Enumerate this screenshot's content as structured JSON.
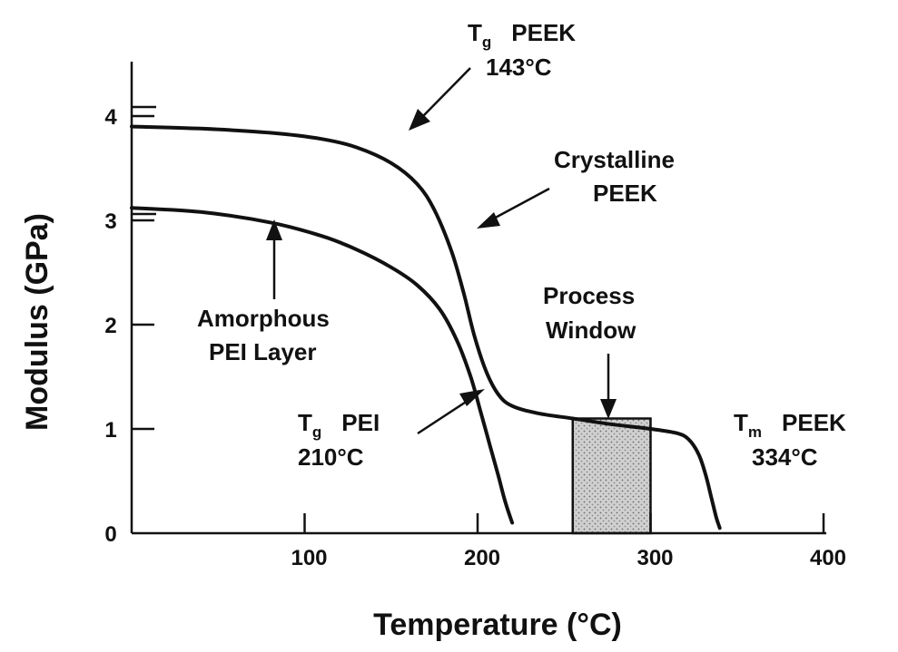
{
  "chart_data": {
    "type": "line",
    "title": "",
    "xlabel": "Temperature  (°C)",
    "ylabel": "Modulus  (GPa)",
    "xlim": [
      0,
      400
    ],
    "ylim": [
      0,
      4.4
    ],
    "x_ticks": [
      100,
      200,
      300,
      400
    ],
    "x_tick_labels": [
      "100",
      "200",
      "300",
      "400"
    ],
    "y_ticks": [
      0,
      1,
      2,
      3,
      4
    ],
    "y_tick_labels": [
      "0",
      "1",
      "2",
      "3",
      "4"
    ],
    "grid": false,
    "series": [
      {
        "x": [
          0,
          40,
          80,
          110,
          130,
          150,
          165,
          175,
          185,
          192,
          198,
          205,
          212,
          220,
          235,
          255,
          275,
          300,
          315,
          322,
          328,
          332,
          335,
          338,
          340
        ],
        "y": [
          3.9,
          3.88,
          3.84,
          3.78,
          3.7,
          3.55,
          3.35,
          3.1,
          2.7,
          2.3,
          1.9,
          1.55,
          1.33,
          1.22,
          1.15,
          1.1,
          1.05,
          1.0,
          0.96,
          0.9,
          0.75,
          0.55,
          0.35,
          0.15,
          0.05
        ]
      },
      {
        "x": [
          0,
          40,
          80,
          110,
          130,
          150,
          165,
          178,
          188,
          196,
          202,
          207,
          212,
          216,
          220
        ],
        "y": [
          3.12,
          3.08,
          2.98,
          2.85,
          2.72,
          2.55,
          2.38,
          2.15,
          1.85,
          1.5,
          1.15,
          0.85,
          0.55,
          0.3,
          0.1
        ]
      }
    ],
    "shaded_region": {
      "x_start": 255,
      "x_end": 300
    },
    "annotations": [
      {
        "id": "tg-peek",
        "text": [
          "T",
          "PEEK",
          "143°C"
        ],
        "subscript": "g",
        "target": [
          158,
          3.65
        ]
      },
      {
        "id": "crystalline",
        "text": [
          "Crystalline",
          "PEEK"
        ],
        "target": [
          200,
          2.9
        ]
      },
      {
        "id": "amorphous",
        "text": [
          "Amorphous",
          "PEI Layer"
        ],
        "target": [
          80,
          2.98
        ]
      },
      {
        "id": "tg-pei",
        "text": [
          "T",
          "PEI",
          "210°C"
        ],
        "subscript": "g",
        "target": [
          196,
          1.35
        ]
      },
      {
        "id": "process-window",
        "text": [
          "Process",
          "Window"
        ],
        "target": [
          275,
          1.08
        ]
      },
      {
        "id": "tm-peek",
        "text": [
          "T",
          "PEEK",
          "334°C"
        ],
        "subscript": "m"
      }
    ]
  }
}
